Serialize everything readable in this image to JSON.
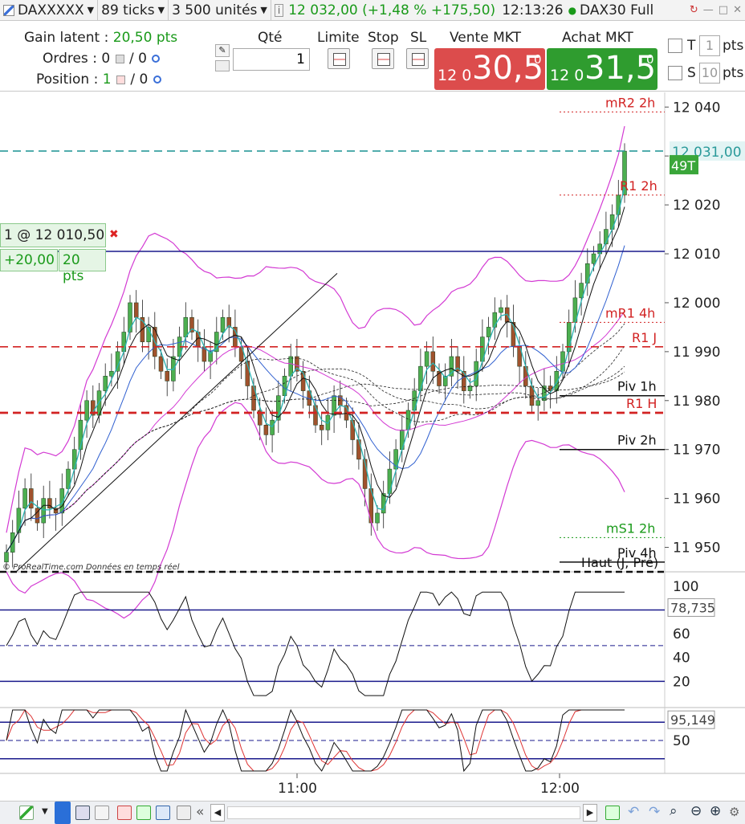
{
  "top_bar": {
    "symbol": "DAXXXXX",
    "ticks": "89 ticks",
    "units": "3 500 unités",
    "price_change": "12 032,00 (+1,48 % +175,50)",
    "time": "12:13:26",
    "instrument": "DAX30 Full"
  },
  "order_panel": {
    "gain_label": "Gain latent :",
    "gain_value": "20,50 pts",
    "orders_label": "Ordres : 0",
    "orders_sep": "/ 0",
    "position_label": "Position :",
    "position_value": "1",
    "position_sep": "/ 0",
    "qty_header": "Qté",
    "qty_value": "1",
    "limit_header": "Limite",
    "stop_header": "Stop",
    "sl_header": "SL",
    "sell": {
      "label": "Vente MKT",
      "small": "12 0",
      "big": "30,5",
      "sup": "0"
    },
    "buy": {
      "label": "Achat MKT",
      "small": "12 0",
      "big": "31,5",
      "sup": "0"
    },
    "t_label": "T",
    "t_value": "1",
    "s_label": "S",
    "s_value": "10",
    "pts": "pts"
  },
  "position_box": {
    "label": "1 @ 12 010,50",
    "pl": "+20,00",
    "pts": "20 pts"
  },
  "watermark": "© ProRealTime.com  Données en temps réel",
  "colors": {
    "up": "#4caf50",
    "down": "#a0522d",
    "bb": "#d33ad3",
    "cyan": "#2ab3b3",
    "navy": "#1a1a8c",
    "red": "#d22222",
    "green": "#1a9a1a"
  },
  "chart_data": [
    {
      "type": "candlestick",
      "ylim": [
        11945,
        12043
      ],
      "y_ticks": [
        "12 040",
        "12 030",
        "12 020",
        "12 010",
        "12 000",
        "11 990",
        "11 980",
        "11 970",
        "11 960",
        "11 950"
      ],
      "x_ticks": [
        "11:00",
        "12:00"
      ],
      "last_price": "12 031,00",
      "tick_counter": "49T",
      "levels": [
        {
          "name": "mR2 2h",
          "value": 12039,
          "color": "#d22222",
          "style": "dotted"
        },
        {
          "name": "last",
          "value": 12031,
          "color": "#2a9a9a",
          "style": "dashed"
        },
        {
          "name": "R1 2h",
          "value": 12022,
          "color": "#d22222",
          "style": "dotted"
        },
        {
          "name": "position",
          "value": 12010.5,
          "color": "#1a1a8c",
          "style": "solid"
        },
        {
          "name": "mR1 4h",
          "value": 11996,
          "color": "#d22222",
          "style": "dotted"
        },
        {
          "name": "R1 J",
          "value": 11991,
          "color": "#d22222",
          "style": "dashed"
        },
        {
          "name": "Piv 1h",
          "value": 11981,
          "color": "#111111",
          "style": "solid"
        },
        {
          "name": "R1 H",
          "value": 11977.5,
          "color": "#d22222",
          "style": "dashed"
        },
        {
          "name": "Piv 2h",
          "value": 11970,
          "color": "#111111",
          "style": "solid"
        },
        {
          "name": "mS1 2h",
          "value": 11952,
          "color": "#1a9a1a",
          "style": "dotted"
        },
        {
          "name": "Piv 4h",
          "value": 11947,
          "color": "#111111",
          "style": "solid"
        },
        {
          "name": "Haut (J, Pré)",
          "value": 11945,
          "color": "#111111",
          "style": "dashed"
        }
      ],
      "candles_close": [
        11949,
        11953,
        11958,
        11962,
        11958,
        11955,
        11960,
        11958,
        11957,
        11962,
        11966,
        11970,
        11976,
        11980,
        11977,
        11982,
        11985,
        11986,
        11990,
        11994,
        12000,
        11997,
        11992,
        11995,
        11989,
        11986,
        11984,
        11989,
        11993,
        11997,
        11994,
        11991,
        11988,
        11990,
        11994,
        11997,
        11995,
        11991,
        11988,
        11983,
        11978,
        11975,
        11973,
        11976,
        11981,
        11985,
        11989,
        11986,
        11982,
        11979,
        11975,
        11974,
        11977,
        11981,
        11979,
        11976,
        11972,
        11968,
        11962,
        11955,
        11957,
        11961,
        11966,
        11970,
        11974,
        11978,
        11982,
        11987,
        11990,
        11986,
        11983,
        11985,
        11989,
        11986,
        11982,
        11983,
        11988,
        11993,
        11995,
        11998,
        11999,
        11996,
        11991,
        11987,
        11983,
        11979,
        11980,
        11983,
        11982,
        11986,
        11990,
        11996,
        12001,
        12004,
        12008,
        12010,
        12012,
        12015,
        12018,
        12022,
        12031
      ]
    },
    {
      "type": "line",
      "name": "oscillator",
      "ylim": [
        0,
        110
      ],
      "y_ticks": [
        "100",
        "60",
        "40",
        "20"
      ],
      "last_value": "78,735",
      "levels": [
        80,
        50,
        20
      ]
    },
    {
      "type": "line",
      "name": "stochastic",
      "ylim": [
        0,
        100
      ],
      "y_ticks": [
        "50"
      ],
      "last_value": "95,149",
      "levels": [
        80,
        50,
        20
      ]
    }
  ]
}
